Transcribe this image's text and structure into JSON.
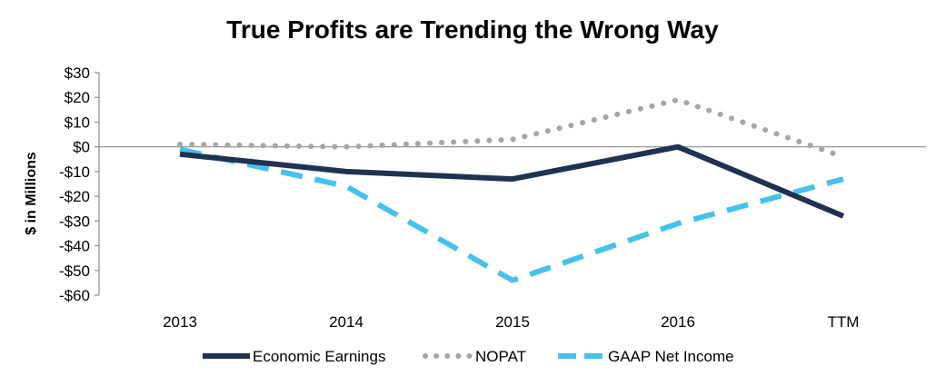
{
  "chart_data": {
    "type": "line",
    "title": "True Profits are Trending the Wrong Way",
    "xlabel": "",
    "ylabel": "$ in Millions",
    "categories": [
      "2013",
      "2014",
      "2015",
      "2016",
      "TTM"
    ],
    "ylim": [
      -60,
      30
    ],
    "yticks": [
      30,
      20,
      10,
      0,
      -10,
      -20,
      -30,
      -40,
      -50,
      -60
    ],
    "ytick_labels": [
      "$30",
      "$20",
      "$10",
      "$0",
      "-$10",
      "-$20",
      "-$30",
      "-$40",
      "-$50",
      "-$60"
    ],
    "grid": false,
    "legend_position": "bottom",
    "series": [
      {
        "name": "Economic Earnings",
        "values": [
          -3,
          -10,
          -13,
          0,
          -28
        ],
        "color": "#1f3251",
        "style": "solid"
      },
      {
        "name": "NOPAT",
        "values": [
          1,
          0,
          3,
          19,
          -4
        ],
        "color": "#a6a6a6",
        "style": "dotted"
      },
      {
        "name": "GAAP Net Income",
        "values": [
          -1,
          -16,
          -54,
          -31,
          -13
        ],
        "color": "#46c0ec",
        "style": "dashed"
      }
    ]
  }
}
